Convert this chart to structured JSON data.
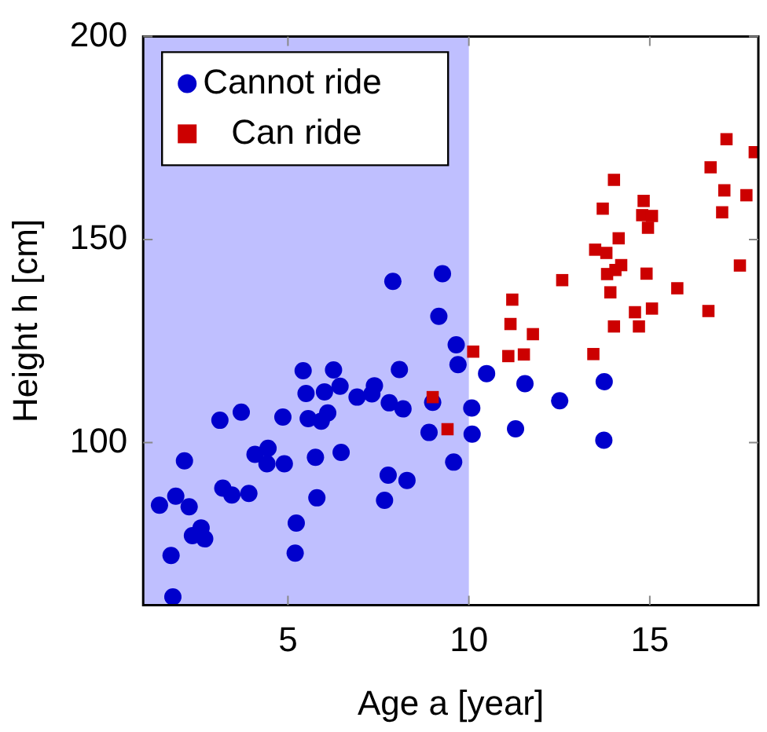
{
  "chart_data": {
    "type": "scatter",
    "xlabel": "Age a [year]",
    "ylabel": "Height h [cm]",
    "xlim": [
      1,
      18
    ],
    "ylim": [
      60,
      200
    ],
    "xticks": [
      5,
      10,
      15
    ],
    "yticks": [
      100,
      150,
      200
    ],
    "grid": false,
    "legend": "top left",
    "bands": [
      {
        "axis": "x",
        "from": 1,
        "to": 10,
        "color": "#bfbfff"
      }
    ],
    "series": [
      {
        "name": "Cannot ride",
        "color": "#0000cc",
        "marker": "circle",
        "x": [
          1.45,
          1.77,
          1.82,
          1.9,
          2.14,
          2.27,
          2.36,
          2.6,
          2.7,
          3.12,
          3.71,
          3.2,
          3.45,
          3.92,
          4.09,
          4.45,
          4.42,
          4.9,
          4.86,
          5.23,
          5.2,
          5.42,
          5.5,
          5.56,
          5.76,
          5.8,
          6.01,
          6.1,
          5.92,
          6.26,
          6.44,
          6.47,
          6.91,
          7.39,
          7.32,
          7.8,
          8.18,
          7.9,
          8.08,
          7.77,
          8.29,
          7.67,
          9.27,
          9.17,
          9.65,
          9.7,
          9.0,
          8.9,
          10.08,
          10.09,
          9.58,
          10.49,
          11.55,
          12.51,
          13.74,
          13.73,
          11.29
        ],
        "values": [
          84.6,
          72.2,
          62,
          86.8,
          95.5,
          84.2,
          77.1,
          79,
          76.3,
          105.5,
          107.5,
          88.8,
          87.1,
          87.5,
          97.1,
          98.6,
          94.8,
          94.8,
          106.3,
          80.2,
          72.8,
          117.7,
          112.1,
          105.9,
          96.4,
          86.4,
          112.5,
          107.3,
          105.3,
          117.9,
          113.9,
          97.6,
          111.2,
          114,
          112,
          109.8,
          108.3,
          139.7,
          118,
          92,
          90.7,
          85.8,
          141.6,
          131.1,
          124.1,
          119.2,
          109.9,
          102.5,
          108.5,
          102.1,
          95.2,
          117,
          114.5,
          110.3,
          115,
          100.6,
          103.4
        ]
      },
      {
        "name": "Can ride",
        "color": "#cc0000",
        "marker": "square",
        "x": [
          9.0,
          9.41,
          10.12,
          11.09,
          11.52,
          11.77,
          11.15,
          11.2,
          12.58,
          13.44,
          14.01,
          14.7,
          14.59,
          15.06,
          15.76,
          16.62,
          13.91,
          13.82,
          14.05,
          14.21,
          14.91,
          13.49,
          13.8,
          14.14,
          13.7,
          14.01,
          14.83,
          14.79,
          15.06,
          14.95,
          17.49,
          17.0,
          17.06,
          17.67,
          16.68,
          17.12,
          17.9
        ],
        "values": [
          111.2,
          103.3,
          122.4,
          121.3,
          121.7,
          126.7,
          129.2,
          135.2,
          140,
          121.8,
          128.6,
          128.6,
          132.1,
          133,
          138,
          132.4,
          137,
          141.5,
          142.5,
          143.7,
          141.6,
          147.5,
          146.7,
          150.3,
          157.6,
          164.7,
          159.5,
          156,
          155.8,
          152.9,
          143.6,
          156.7,
          162.1,
          160.9,
          167.8,
          174.7,
          171.5
        ]
      }
    ]
  }
}
